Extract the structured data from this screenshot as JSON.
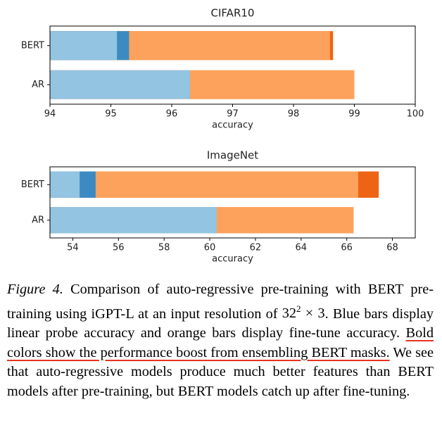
{
  "chart_data": [
    {
      "type": "bar",
      "orientation": "horizontal",
      "overlay": true,
      "title": "CIFAR10",
      "xlabel": "accuracy",
      "categories": [
        "BERT",
        "AR"
      ],
      "series": [
        {
          "color": "#93c4e1",
          "values": [
            95.1,
            96.3
          ]
        },
        {
          "color": "#3b8bc2",
          "values": [
            95.3,
            null
          ]
        },
        {
          "color": "#fda25c",
          "values": [
            98.6,
            99.0
          ]
        },
        {
          "color": "#ee6415",
          "values": [
            98.65,
            null
          ]
        }
      ],
      "xlim": [
        94,
        100
      ],
      "xticks": [
        94,
        95,
        96,
        97,
        98,
        99,
        100
      ]
    },
    {
      "type": "bar",
      "orientation": "horizontal",
      "overlay": true,
      "title": "ImageNet",
      "xlabel": "accuracy",
      "categories": [
        "BERT",
        "AR"
      ],
      "series": [
        {
          "color": "#93c4e1",
          "values": [
            54.3,
            60.3
          ]
        },
        {
          "color": "#3b8bc2",
          "values": [
            55.0,
            null
          ]
        },
        {
          "color": "#fda25c",
          "values": [
            66.5,
            66.3
          ]
        },
        {
          "color": "#ee6415",
          "values": [
            67.4,
            null
          ]
        }
      ],
      "xlim": [
        53,
        69
      ],
      "xticks": [
        54,
        56,
        58,
        60,
        62,
        64,
        66,
        68
      ]
    }
  ],
  "caption": {
    "label": "Figure 4.",
    "text": "Comparison of auto-regressive pre-training with BERT pre-training using iGPT-L at an input resolution of",
    "math_base": "32",
    "math_sup": "2",
    "math_rest": "× 3",
    "text_middle": ". Blue bars display linear probe accuracy and orange bars display fine-tune accuracy.",
    "highlight": "Bold colors show the performance boost from ensembling BERT masks.",
    "text_after": "We see that auto-regressive models produce much better features than BERT models after pre-training, but BERT models catch up after fine-tuning."
  }
}
